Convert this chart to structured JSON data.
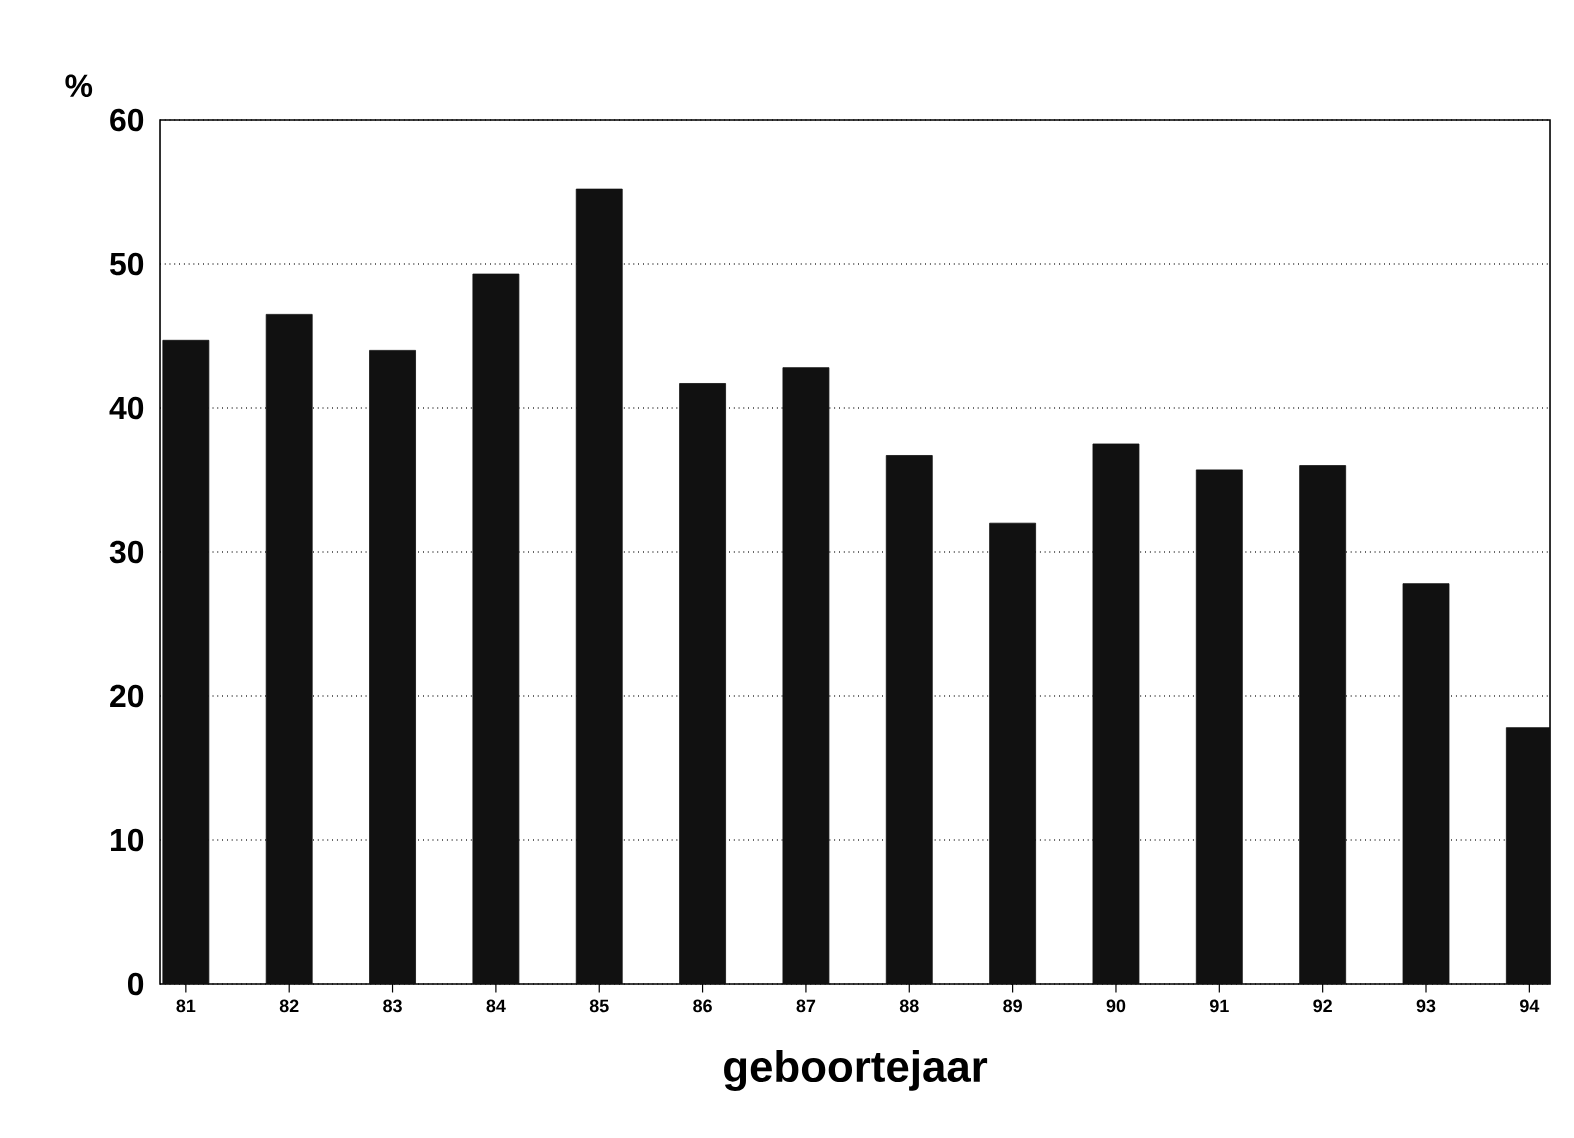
{
  "chart_data": {
    "type": "bar",
    "xlabel": "geboortejaar",
    "ylabel": "%",
    "categories": [
      "81",
      "82",
      "83",
      "84",
      "85",
      "86",
      "87",
      "88",
      "89",
      "90",
      "91",
      "92",
      "93",
      "94"
    ],
    "values": [
      44.7,
      46.5,
      44.0,
      49.3,
      55.2,
      41.7,
      42.8,
      36.7,
      32.0,
      37.5,
      35.7,
      36.0,
      27.8,
      17.8
    ],
    "color": "#111111",
    "ylim": [
      0,
      60
    ],
    "yticks": [
      0,
      10,
      20,
      30,
      40,
      50,
      60
    ],
    "grid": "y"
  }
}
